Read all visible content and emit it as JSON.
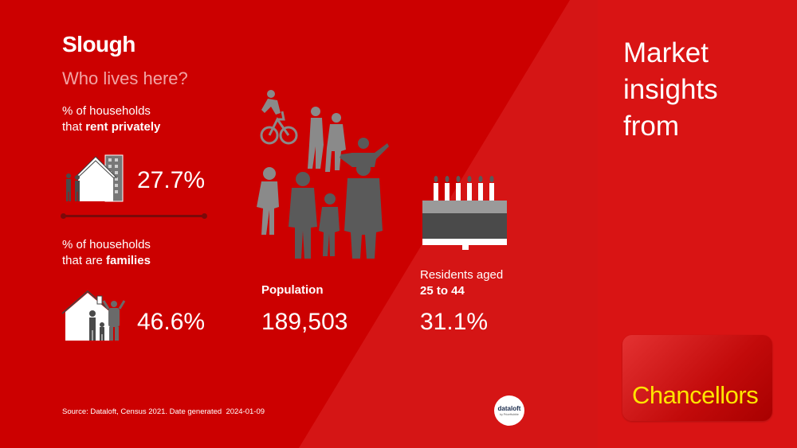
{
  "header": {
    "town": "Slough",
    "subtitle": "Who lives here?"
  },
  "rent": {
    "label_line1": "% of households",
    "label_prefix": "that ",
    "label_bold": "rent privately",
    "value": "27.7%"
  },
  "families": {
    "label_line1": "% of households",
    "label_prefix": "that are ",
    "label_bold": "families",
    "value": "46.6%"
  },
  "population": {
    "label": "Population",
    "value": "189,503"
  },
  "residents": {
    "label_line1": "Residents aged",
    "label_bold": "25 to 44",
    "value": "31.1%"
  },
  "sidebar": {
    "line1": "Market",
    "line2": "insights",
    "line3": "from"
  },
  "brand": {
    "logo_text": "Chancellors"
  },
  "footer": {
    "source": "Source: Dataloft, Census 2021. Date generated",
    "date": "2024-01-09",
    "badge_line1": "dataloft",
    "badge_line2": "by PriceHubble"
  },
  "colors": {
    "background": "#cc0000",
    "panel": "#d91414",
    "accent_logo": "#ffe400",
    "icon_grey": "#5a5a5a",
    "icon_light": "#8a8a8a"
  },
  "icons": [
    "house-people-apartment-icon",
    "house-family-icon",
    "population-crowd-icon",
    "birthday-cake-icon"
  ]
}
